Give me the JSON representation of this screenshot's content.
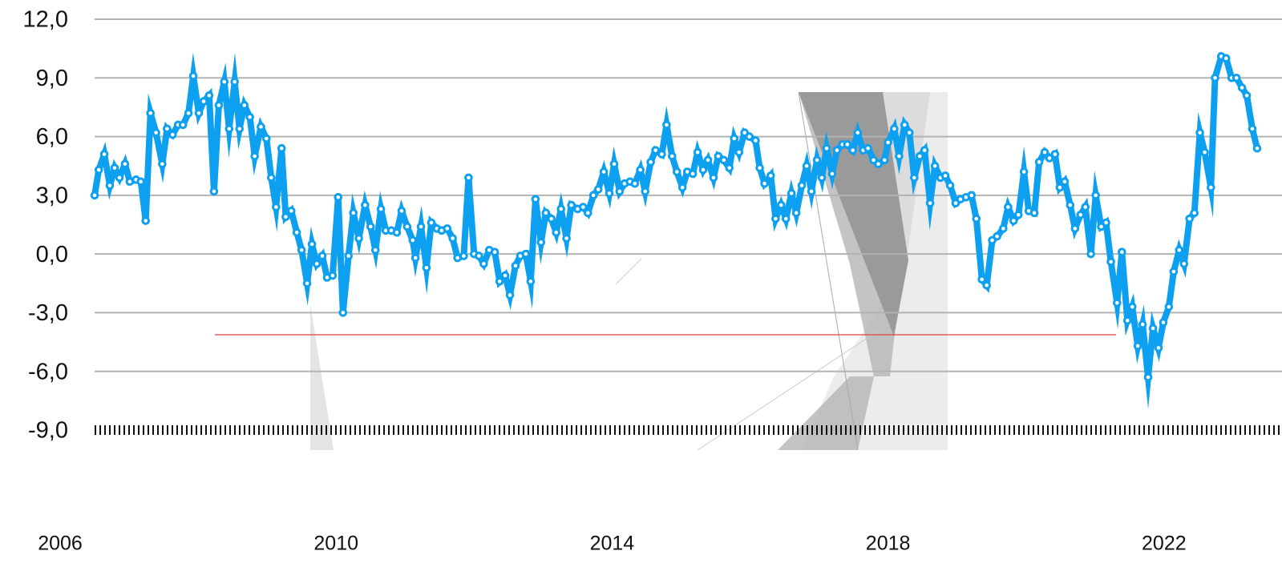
{
  "chart_data": {
    "type": "line",
    "x": [
      2006.5,
      2006.56,
      2006.64,
      2006.72,
      2006.79,
      2006.86,
      2006.94,
      2007.01,
      2007.1,
      2007.17,
      2007.24,
      2007.31,
      2007.39,
      2007.48,
      2007.55,
      2007.63,
      2007.71,
      2007.78,
      2007.86,
      2007.93,
      2008.01,
      2008.08,
      2008.16,
      2008.23,
      2008.3,
      2008.38,
      2008.45,
      2008.53,
      2008.6,
      2008.67,
      2008.75,
      2008.82,
      2008.91,
      2008.99,
      2009.06,
      2009.13,
      2009.21,
      2009.27,
      2009.35,
      2009.43,
      2009.5,
      2009.58,
      2009.65,
      2009.72,
      2009.8,
      2009.87,
      2009.95,
      2010.03,
      2010.1,
      2010.18,
      2010.25,
      2010.33,
      2010.42,
      2010.5,
      2010.57,
      2010.65,
      2010.72,
      2010.8,
      2010.88,
      2010.95,
      2011.03,
      2011.11,
      2011.15,
      2011.23,
      2011.31,
      2011.38,
      2011.46,
      2011.53,
      2011.61,
      2011.69,
      2011.76,
      2011.85,
      2011.92,
      2012.0,
      2012.07,
      2012.14,
      2012.22,
      2012.3,
      2012.37,
      2012.45,
      2012.52,
      2012.6,
      2012.67,
      2012.75,
      2012.82,
      2012.89,
      2012.97,
      2013.04,
      2013.12,
      2013.19,
      2013.26,
      2013.34,
      2013.41,
      2013.5,
      2013.58,
      2013.65,
      2013.73,
      2013.8,
      2013.88,
      2013.96,
      2014.03,
      2014.11,
      2014.18,
      2014.26,
      2014.33,
      2014.41,
      2014.48,
      2014.56,
      2014.63,
      2014.72,
      2014.79,
      2014.87,
      2014.94,
      2015.02,
      2015.09,
      2015.17,
      2015.24,
      2015.32,
      2015.39,
      2015.47,
      2015.54,
      2015.62,
      2015.7,
      2015.77,
      2015.84,
      2015.92,
      2015.99,
      2016.08,
      2016.14,
      2016.21,
      2016.3,
      2016.37,
      2016.45,
      2016.52,
      2016.6,
      2016.67,
      2016.75,
      2016.82,
      2016.89,
      2016.97,
      2017.04,
      2017.11,
      2017.19,
      2017.26,
      2017.34,
      2017.41,
      2017.49,
      2017.56,
      2017.64,
      2017.71,
      2017.79,
      2017.86,
      2017.95,
      2018.0,
      2018.09,
      2018.16,
      2018.24,
      2018.31,
      2018.38,
      2018.46,
      2018.53,
      2018.61,
      2018.68,
      2018.76,
      2018.83,
      2018.9,
      2018.98,
      2019.05,
      2019.13,
      2019.21,
      2019.28,
      2019.36,
      2019.43,
      2019.51,
      2019.58,
      2019.67,
      2019.74,
      2019.82,
      2019.89,
      2019.97,
      2020.04,
      2020.12,
      2020.19,
      2020.27,
      2020.34,
      2020.42,
      2020.49,
      2020.56,
      2020.64,
      2020.71,
      2020.79,
      2020.86,
      2020.94,
      2021.01,
      2021.09,
      2021.16,
      2021.23,
      2021.32,
      2021.39,
      2021.47,
      2021.54,
      2021.62,
      2021.69,
      2021.77,
      2021.84,
      2021.92,
      2021.99,
      2022.07,
      2022.14,
      2022.22,
      2022.29,
      2022.37,
      2022.44,
      2022.52,
      2022.59,
      2022.68,
      2022.74,
      2022.83,
      2022.9,
      2022.98,
      2023.05,
      2023.13,
      2023.2,
      2023.28,
      2023.35
    ],
    "series": [
      {
        "color": "#0ea0f0",
        "values": [
          3.0,
          4.3,
          5.1,
          3.5,
          4.4,
          3.9,
          4.6,
          3.7,
          3.8,
          3.7,
          1.7,
          7.2,
          6.2,
          4.6,
          6.4,
          6.1,
          6.6,
          6.6,
          7.2,
          9.1,
          7.2,
          7.8,
          8.1,
          3.2,
          7.6,
          8.8,
          6.4,
          8.8,
          6.4,
          7.6,
          7.0,
          5.0,
          6.5,
          5.9,
          3.9,
          2.4,
          5.4,
          1.9,
          2.2,
          1.1,
          0.2,
          -1.5,
          0.5,
          -0.5,
          -0.1,
          -1.2,
          -1.1,
          2.9,
          -3.0,
          -0.1,
          2.1,
          0.8,
          2.5,
          1.4,
          0.2,
          2.3,
          1.2,
          1.2,
          1.1,
          2.2,
          1.4,
          0.7,
          -0.2,
          1.4,
          -0.7,
          1.6,
          1.3,
          1.2,
          1.3,
          0.8,
          -0.2,
          -0.1,
          3.9,
          0.0,
          -0.1,
          -0.5,
          0.2,
          0.1,
          -1.4,
          -1.1,
          -2.1,
          -0.6,
          -0.1,
          0.0,
          -1.4,
          2.8,
          0.6,
          2.1,
          1.8,
          1.1,
          2.3,
          0.8,
          2.5,
          2.3,
          2.4,
          2.1,
          3.0,
          3.3,
          4.2,
          3.1,
          4.6,
          3.2,
          3.6,
          3.7,
          3.6,
          4.3,
          3.2,
          4.7,
          5.3,
          5.1,
          6.6,
          5.0,
          4.2,
          3.4,
          4.2,
          4.1,
          5.2,
          4.3,
          4.8,
          3.9,
          5.0,
          4.8,
          4.4,
          5.9,
          5.2,
          6.2,
          6.0,
          5.8,
          4.4,
          3.6,
          4.0,
          1.8,
          2.5,
          1.8,
          3.1,
          2.1,
          3.5,
          4.5,
          3.2,
          4.8,
          3.9,
          5.4,
          4.1,
          5.3,
          5.6,
          5.6,
          5.3,
          6.2,
          5.3,
          5.4,
          4.8,
          4.6,
          4.8,
          5.7,
          6.4,
          5.0,
          6.6,
          6.2,
          3.9,
          5.0,
          5.3,
          2.6,
          4.5,
          3.9,
          4.0,
          3.5,
          2.6,
          2.8,
          2.9,
          3.0,
          1.8,
          -1.3,
          -1.6,
          0.7,
          0.9,
          1.3,
          2.4,
          1.7,
          2.0,
          4.2,
          2.2,
          2.1,
          4.7,
          5.2,
          4.9,
          5.1,
          3.4,
          3.7,
          2.5,
          1.3,
          2.0,
          2.4,
          0.0,
          3.0,
          1.4,
          1.6,
          -0.4,
          -2.5,
          0.1,
          -3.4,
          -2.7,
          -4.7,
          -3.6,
          -6.3,
          -3.8,
          -4.8,
          -3.5,
          -2.7,
          -0.9,
          0.2,
          -0.5,
          1.8,
          2.1,
          6.2,
          5.2,
          3.4,
          9.0,
          10.1,
          10.0,
          9.0,
          9.0,
          8.5,
          8.1,
          6.4,
          5.4
        ]
      }
    ],
    "xlim": [
      2006,
      2023.35
    ],
    "xticks": [
      2006,
      2010,
      2014,
      2018,
      2022
    ],
    "ylim": [
      -9,
      12
    ],
    "yticks": [
      {
        "value": -9,
        "label": "-9,0"
      },
      {
        "value": -6,
        "label": "-6,0"
      },
      {
        "value": -3,
        "label": "-3,0"
      },
      {
        "value": 0,
        "label": "0,0"
      },
      {
        "value": 3,
        "label": "3,0"
      },
      {
        "value": 6,
        "label": "6,0"
      },
      {
        "value": 9,
        "label": "9,0"
      },
      {
        "value": 12,
        "label": "12,0"
      }
    ],
    "grid": true,
    "markers": true
  }
}
